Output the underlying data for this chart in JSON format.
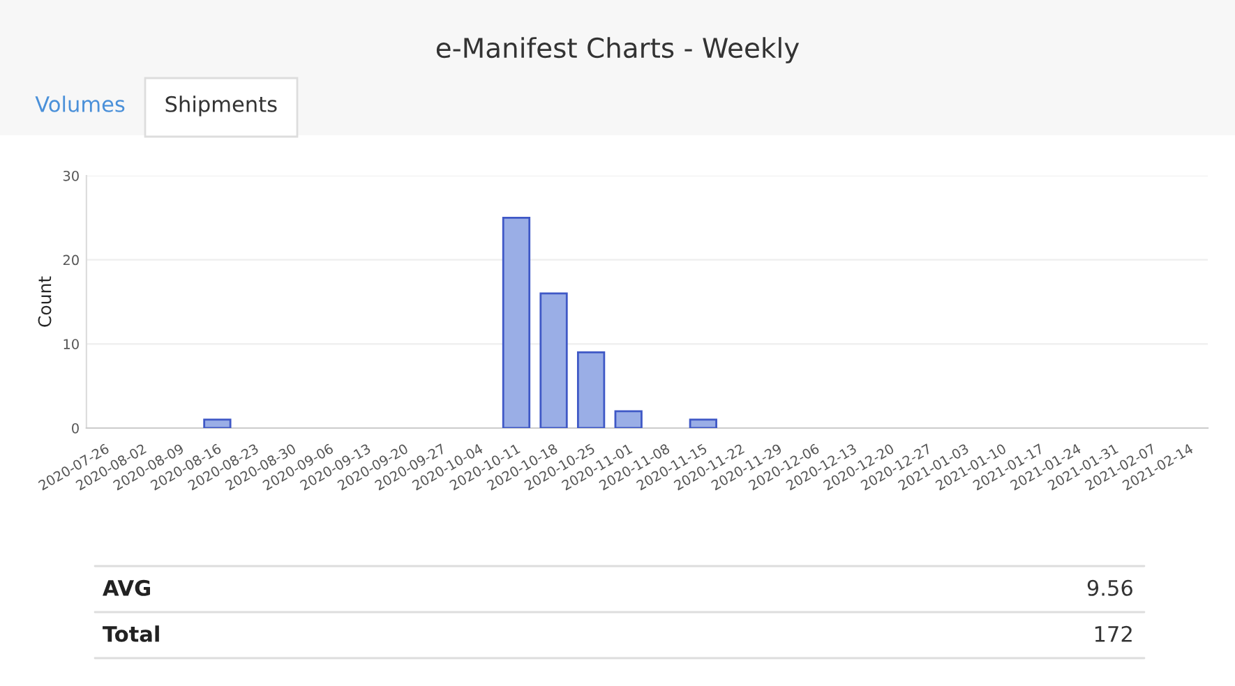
{
  "chart_data": {
    "type": "bar",
    "title": "e-Manifest Charts - Weekly",
    "ylabel": "Count",
    "categories": [
      "2020-07-26",
      "2020-08-02",
      "2020-08-09",
      "2020-08-16",
      "2020-08-23",
      "2020-08-30",
      "2020-09-06",
      "2020-09-13",
      "2020-09-20",
      "2020-09-27",
      "2020-10-04",
      "2020-10-11",
      "2020-10-18",
      "2020-10-25",
      "2020-11-01",
      "2020-11-08",
      "2020-11-15",
      "2020-11-22",
      "2020-11-29",
      "2020-12-06",
      "2020-12-13",
      "2020-12-20",
      "2020-12-27",
      "2021-01-03",
      "2021-01-10",
      "2021-01-17",
      "2021-01-24",
      "2021-01-31",
      "2021-02-07",
      "2021-02-14"
    ],
    "values": [
      0,
      0,
      0,
      1,
      0,
      0,
      0,
      0,
      0,
      0,
      0,
      25,
      16,
      9,
      2,
      0,
      1,
      0,
      0,
      0,
      0,
      0,
      0,
      0,
      0,
      0,
      0,
      0,
      0,
      0
    ],
    "color": "#9aaee6",
    "ylim": [
      0,
      30
    ],
    "yticks": [
      0,
      10,
      20,
      30
    ],
    "grid": "y",
    "annotations": [
      "Volumes",
      "Shipments",
      "AVG",
      "9.56",
      "Total",
      "172"
    ]
  }
}
